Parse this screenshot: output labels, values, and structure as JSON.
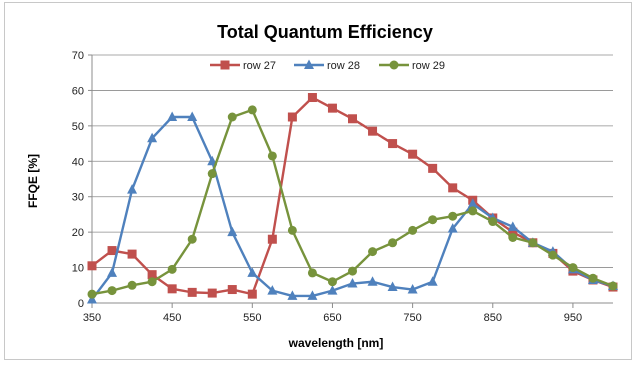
{
  "chart_data": {
    "type": "line",
    "title": "Total Quantum Efficiency",
    "xlabel": "wavelength [nm]",
    "ylabel": "FFQE [%]",
    "xlim": [
      350,
      1000
    ],
    "ylim": [
      0,
      70
    ],
    "xticks": [
      350,
      450,
      550,
      650,
      750,
      850,
      950
    ],
    "yticks": [
      0,
      10,
      20,
      30,
      40,
      50,
      60,
      70
    ],
    "grid": true,
    "legend_position": "top",
    "x": [
      350,
      375,
      400,
      425,
      450,
      475,
      500,
      525,
      550,
      575,
      600,
      625,
      650,
      675,
      700,
      725,
      750,
      775,
      800,
      825,
      850,
      875,
      900,
      925,
      950,
      975,
      1000
    ],
    "series": [
      {
        "name": "row 27",
        "color": "#c0504d",
        "marker": "square",
        "values": [
          10.5,
          14.8,
          13.8,
          8,
          4,
          3,
          2.8,
          3.8,
          2.5,
          18,
          52.5,
          58,
          55,
          52,
          48.5,
          45,
          42,
          38,
          32.5,
          29,
          24,
          20,
          17,
          14,
          9,
          6.5,
          4.5
        ]
      },
      {
        "name": "row 28",
        "color": "#4f81bd",
        "marker": "triangle",
        "values": [
          1,
          8.5,
          32,
          46.5,
          52.5,
          52.5,
          40,
          20,
          8.5,
          3.5,
          2,
          2,
          3.5,
          5.5,
          6,
          4.5,
          3.8,
          6,
          21,
          28,
          24,
          21.5,
          17,
          14.5,
          9.5,
          6.5,
          4.8
        ]
      },
      {
        "name": "row 29",
        "color": "#77933c",
        "marker": "circle",
        "values": [
          2.5,
          3.5,
          5,
          6,
          9.5,
          18,
          36.5,
          52.5,
          54.5,
          41.5,
          20.5,
          8.5,
          6,
          9,
          14.5,
          17,
          20.5,
          23.5,
          24.5,
          26,
          23,
          18.5,
          17,
          13.5,
          10,
          7,
          4.8
        ]
      }
    ]
  }
}
